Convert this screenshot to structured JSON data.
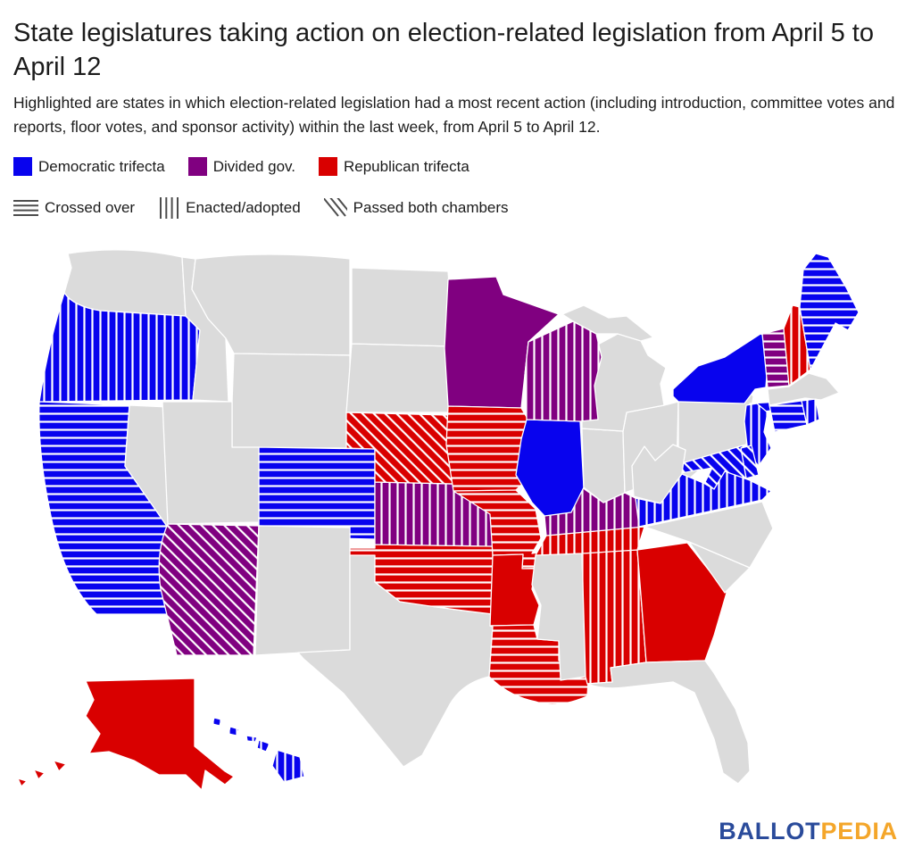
{
  "title": "State legislatures taking action on election-related legislation from April 5 to April 12",
  "subtitle": "Highlighted are states in which election-related legislation had a most recent action (including introduction, committee votes and reports, floor votes, and sponsor activity) within the last week, from April 5 to April 12.",
  "legend": {
    "colors": [
      {
        "key": "dem",
        "label": "Democratic trifecta",
        "color": "#0803EE"
      },
      {
        "key": "div",
        "label": "Divided gov.",
        "color": "#800080"
      },
      {
        "key": "rep",
        "label": "Republican trifecta",
        "color": "#D90000"
      }
    ],
    "patterns": [
      {
        "key": "h",
        "label": "Crossed over"
      },
      {
        "key": "v",
        "label": "Enacted/adopted"
      },
      {
        "key": "d",
        "label": "Passed both chambers"
      }
    ]
  },
  "map": {
    "no_action_color": "#DBDBDB",
    "border_color": "#FFFFFF",
    "stripe_color": "#FFFFFF",
    "states": {
      "WA": "none",
      "OR": "dem-v",
      "CA": "dem-h",
      "NV": "none",
      "ID": "none",
      "MT": "none",
      "WY": "none",
      "UT": "none",
      "CO": "dem-h",
      "AZ": "div-d",
      "NM": "none",
      "TX": "none",
      "OK": "rep-h",
      "KS": "div-v",
      "NE": "rep-d",
      "SD": "none",
      "ND": "none",
      "MN": "div",
      "IA": "rep-h",
      "MO": "rep-h",
      "AR": "rep",
      "LA": "rep-h",
      "MS": "none",
      "AL": "rep-v",
      "GA": "rep",
      "FL": "none",
      "SC": "none",
      "NC": "none",
      "TN": "rep-v",
      "KY": "div-v",
      "WV": "none",
      "VA": "dem-v",
      "MD": "dem-d",
      "DE": "dem-d",
      "NJ": "dem-v",
      "PA": "none",
      "NY": "dem",
      "CT": "dem-h",
      "RI": "dem-v",
      "MA": "none",
      "VT": "div-h",
      "NH": "rep-v",
      "ME": "dem-h",
      "OH": "none",
      "IN": "none",
      "MI": "none",
      "IL": "dem",
      "WI": "div-v",
      "AK": "rep",
      "HI": "dem-v"
    }
  },
  "logo": {
    "part1": "BALLOT",
    "part2": "PEDIA",
    "color1": "#2A4B9B",
    "color2": "#F4A62A"
  }
}
